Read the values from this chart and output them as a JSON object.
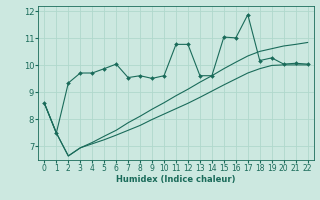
{
  "xlabel": "Humidex (Indice chaleur)",
  "bg_color": "#cce8e0",
  "line_color": "#1a6b5a",
  "grid_color": "#b0d8cc",
  "xlim": [
    -0.5,
    22.5
  ],
  "ylim": [
    6.5,
    12.2
  ],
  "yticks": [
    7,
    8,
    9,
    10,
    11,
    12
  ],
  "xticks": [
    0,
    1,
    2,
    3,
    4,
    5,
    6,
    7,
    8,
    9,
    10,
    11,
    12,
    13,
    14,
    15,
    16,
    17,
    18,
    19,
    20,
    21,
    22
  ],
  "line1_x": [
    0,
    1,
    2,
    3,
    4,
    5,
    6,
    7,
    8,
    9,
    10,
    11,
    12,
    13,
    14,
    15,
    16,
    17,
    18,
    19,
    20,
    21,
    22
  ],
  "line1_y": [
    8.6,
    7.5,
    6.65,
    6.95,
    7.1,
    7.25,
    7.42,
    7.6,
    7.78,
    8.0,
    8.2,
    8.4,
    8.6,
    8.82,
    9.05,
    9.28,
    9.5,
    9.72,
    9.88,
    10.0,
    10.02,
    10.02,
    10.02
  ],
  "line2_x": [
    0,
    1,
    2,
    3,
    4,
    5,
    6,
    7,
    8,
    9,
    10,
    11,
    12,
    13,
    14,
    15,
    16,
    17,
    18,
    19,
    20,
    21,
    22
  ],
  "line2_y": [
    8.6,
    7.5,
    6.65,
    6.95,
    7.15,
    7.38,
    7.6,
    7.88,
    8.12,
    8.38,
    8.62,
    8.88,
    9.12,
    9.38,
    9.62,
    9.88,
    10.12,
    10.35,
    10.52,
    10.62,
    10.72,
    10.78,
    10.85
  ],
  "line3_x": [
    0,
    1,
    2,
    3,
    4,
    5,
    6,
    7,
    8,
    9,
    10,
    11,
    12,
    13,
    14,
    15,
    16,
    17,
    18,
    19,
    20,
    21,
    22
  ],
  "line3_y": [
    8.6,
    7.5,
    9.35,
    9.72,
    9.72,
    9.88,
    10.05,
    9.55,
    9.62,
    9.52,
    9.62,
    10.78,
    10.78,
    9.62,
    9.62,
    11.05,
    11.02,
    11.88,
    10.18,
    10.28,
    10.05,
    10.08,
    10.05
  ],
  "xlabel_fontsize": 6,
  "tick_fontsize": 5.5
}
